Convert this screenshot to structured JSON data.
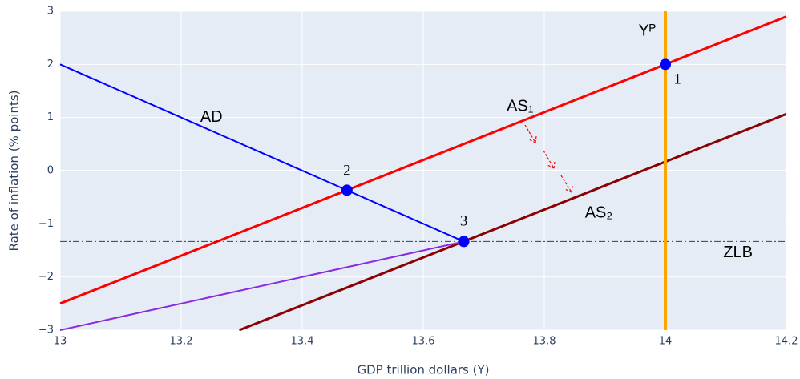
{
  "chart_data": {
    "type": "line",
    "xlabel": "GDP trillion dollars (Y)",
    "ylabel": "Rate of inflation (% points)",
    "xlim": [
      13,
      14.2
    ],
    "ylim": [
      -3,
      3
    ],
    "xticks": [
      13,
      13.2,
      13.4,
      13.6,
      13.8,
      14,
      14.2
    ],
    "yticks": [
      {
        "value": -3,
        "label": "−3"
      },
      {
        "value": -2,
        "label": "−2"
      },
      {
        "value": -1,
        "label": "−1"
      },
      0,
      1,
      2,
      3
    ],
    "grid": true,
    "series": [
      {
        "color": "#0000ff",
        "width": 2,
        "x": [
          13,
          13.667
        ],
        "values": [
          2,
          -1.333
        ]
      },
      {
        "color": "#ff0000",
        "width": 3,
        "x": [
          13,
          14.2
        ],
        "values": [
          -2.5,
          2.9
        ]
      },
      {
        "color": "#8b0000",
        "width": 3,
        "x": [
          13.296,
          14.2
        ],
        "values": [
          -3,
          1.067
        ]
      },
      {
        "color": "#8a2be2",
        "width": 2,
        "x": [
          13,
          13.667
        ],
        "values": [
          -3,
          -1.333
        ]
      },
      {
        "color": "#2a3f5f",
        "width": 1,
        "dash": "dashdot",
        "x": [
          13,
          14.2
        ],
        "values": [
          -1.333,
          -1.333
        ]
      },
      {
        "color": "#ffa500",
        "width": 4,
        "x": [
          14,
          14
        ],
        "values": [
          -3,
          3
        ]
      },
      {
        "type": "scatter",
        "color": "#0000ff",
        "x": [
          14,
          13.474,
          13.667
        ],
        "values": [
          2,
          -0.368,
          -1.333
        ]
      }
    ],
    "annotations": [
      {
        "text": "AD",
        "x": 13.25,
        "y": 1,
        "font": "sans"
      },
      {
        "text": "AS₁",
        "x": 13.76,
        "y": 1.2,
        "font": "sans"
      },
      {
        "text": "AS₂",
        "x": 13.89,
        "y": -0.8,
        "font": "sans"
      },
      {
        "text": "Yᴾ",
        "x": 13.97,
        "y": 2.62,
        "font": "sans"
      },
      {
        "text": "ZLB",
        "x": 14.12,
        "y": -1.55,
        "font": "sans"
      },
      {
        "text": "1",
        "x": 14.02,
        "y": 1.7,
        "font": "serif"
      },
      {
        "text": "2",
        "x": 13.474,
        "y": -0.02,
        "font": "serif"
      },
      {
        "text": "3",
        "x": 13.667,
        "y": -0.97,
        "font": "serif"
      }
    ]
  }
}
